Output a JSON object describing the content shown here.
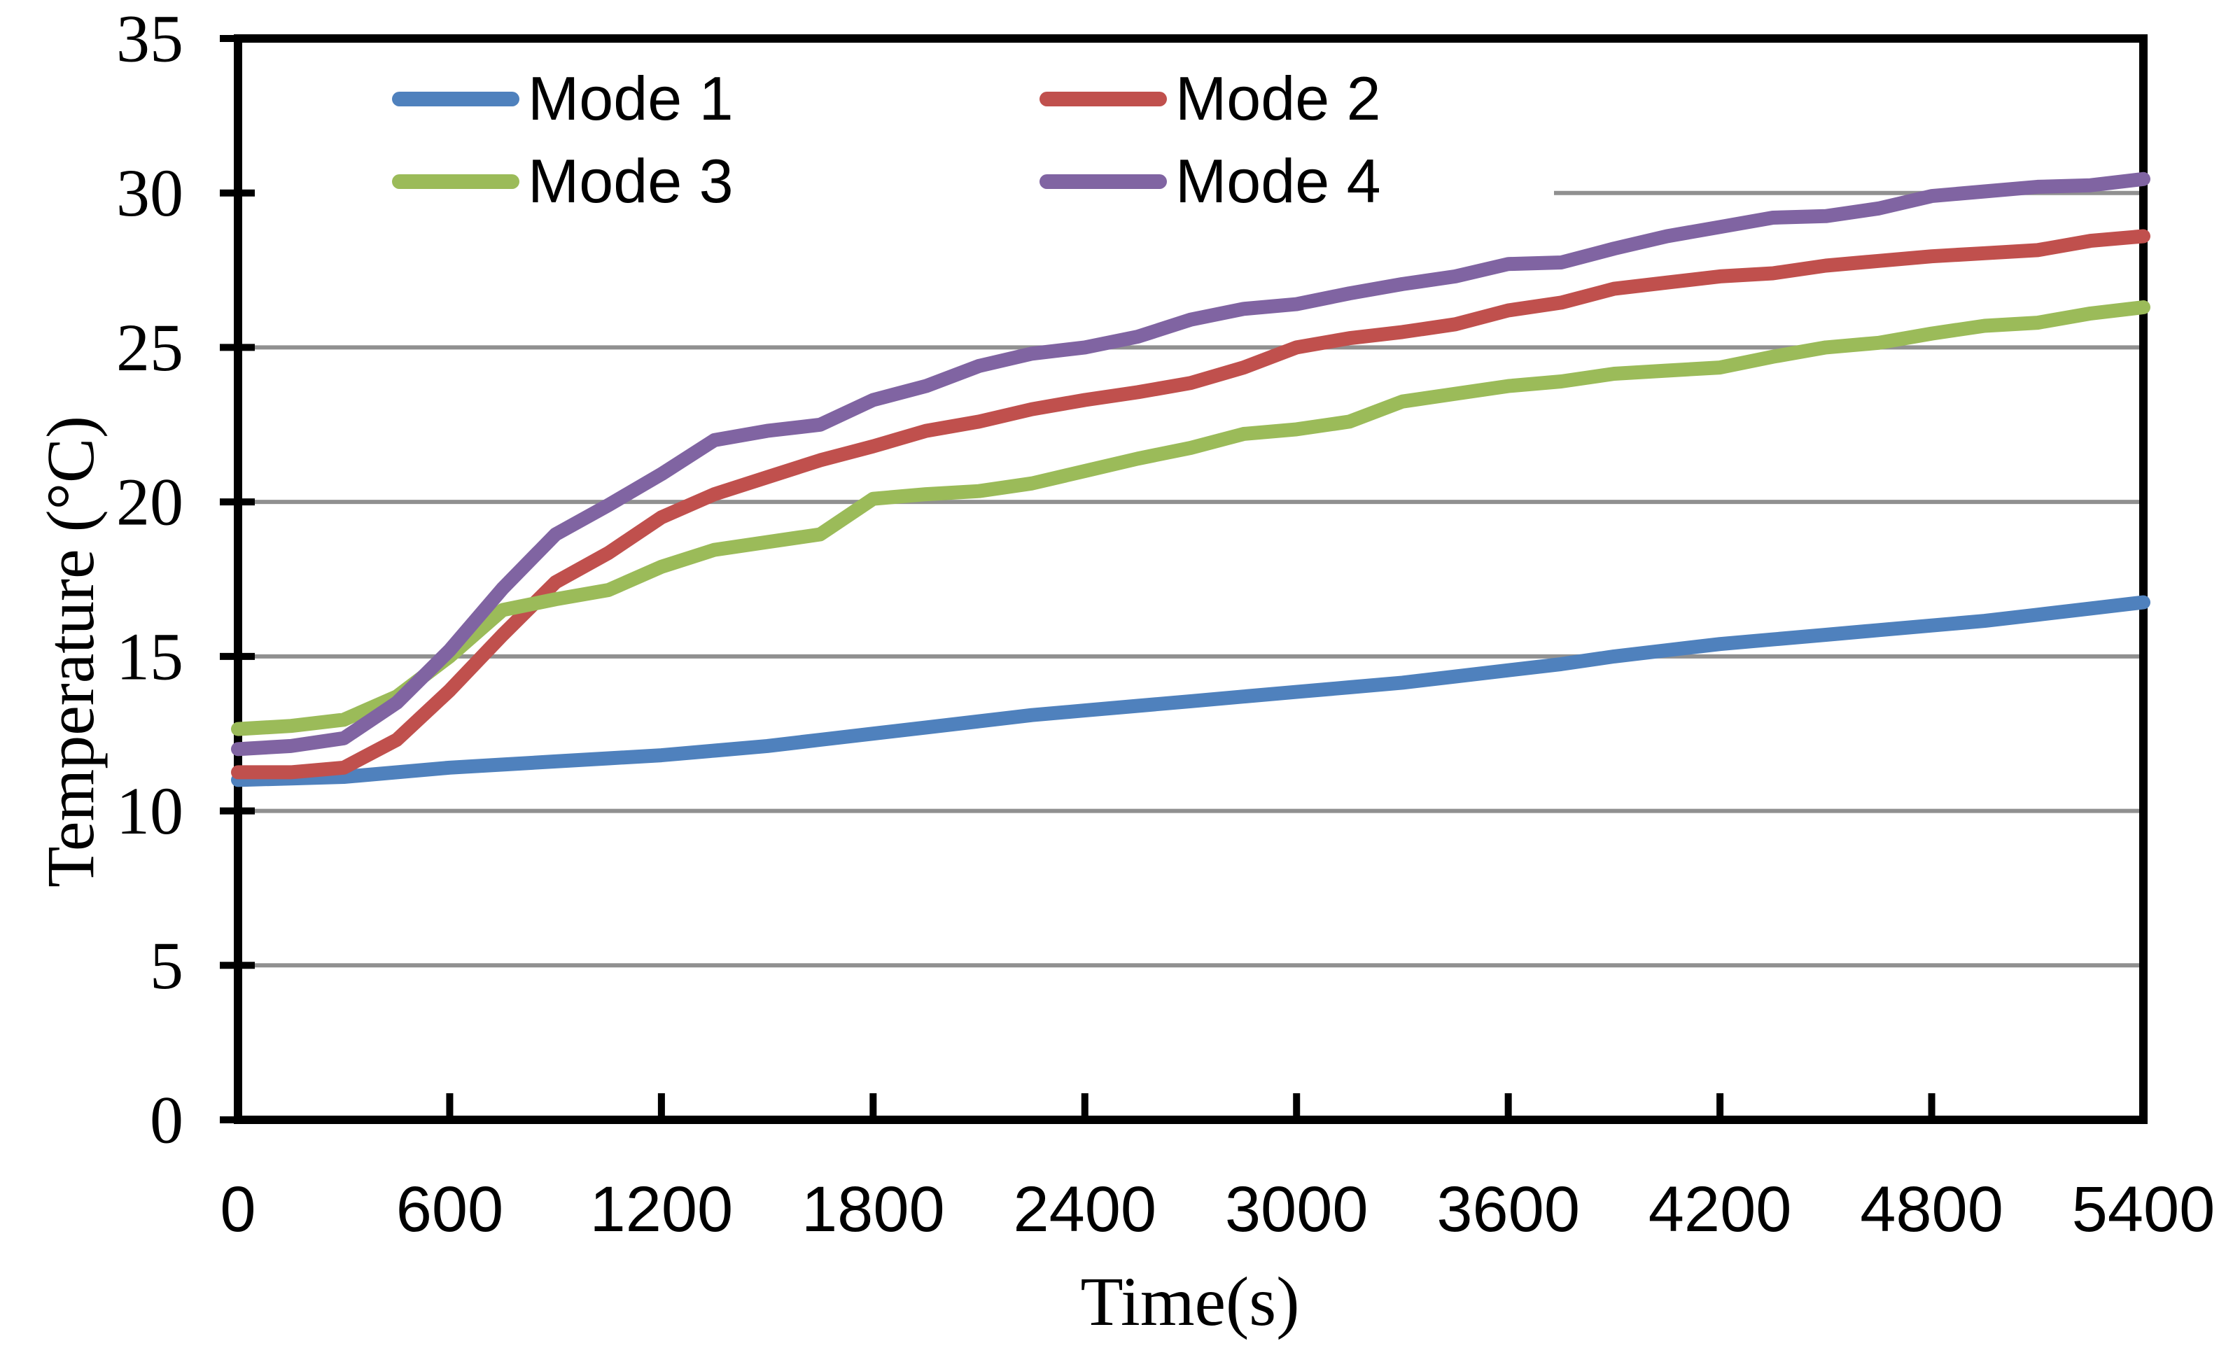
{
  "chart_data": {
    "type": "line",
    "title": "",
    "xlabel": "Time(s)",
    "ylabel": "Temperature (°C)",
    "xlim": [
      0,
      5400
    ],
    "ylim": [
      0,
      35
    ],
    "x_tick_step": 600,
    "y_tick_step": 5,
    "x_ticks": [
      0,
      600,
      1200,
      1800,
      2400,
      3000,
      3600,
      4200,
      4800,
      5400
    ],
    "y_ticks": [
      0,
      5,
      10,
      15,
      20,
      25,
      30,
      35
    ],
    "grid": "horizontal",
    "legend_position": "top-left-inside",
    "axis_color": "#000000",
    "gridline_color": "#909090",
    "background_color": "#ffffff",
    "x": [
      0,
      150,
      300,
      450,
      600,
      750,
      900,
      1050,
      1200,
      1350,
      1500,
      1650,
      1800,
      1950,
      2100,
      2250,
      2400,
      2550,
      2700,
      2850,
      3000,
      3150,
      3300,
      3450,
      3600,
      3750,
      3900,
      4050,
      4200,
      4350,
      4500,
      4650,
      4800,
      4950,
      5100,
      5250,
      5400
    ],
    "series": [
      {
        "name": "Mode 1",
        "color": "#4F81BD",
        "values": [
          11.0,
          11.05,
          11.1,
          11.25,
          11.4,
          11.5,
          11.6,
          11.7,
          11.8,
          11.95,
          12.1,
          12.3,
          12.5,
          12.7,
          12.9,
          13.1,
          13.25,
          13.4,
          13.55,
          13.7,
          13.85,
          14.0,
          14.15,
          14.35,
          14.55,
          14.75,
          15.0,
          15.2,
          15.4,
          15.55,
          15.7,
          15.85,
          16.0,
          16.15,
          16.35,
          16.55,
          16.75
        ]
      },
      {
        "name": "Mode 2",
        "color": "#C0504D",
        "values": [
          11.25,
          11.25,
          11.4,
          12.3,
          13.9,
          15.7,
          17.4,
          18.35,
          19.5,
          20.25,
          20.8,
          21.35,
          21.8,
          22.3,
          22.6,
          23.0,
          23.3,
          23.55,
          23.85,
          24.35,
          25.0,
          25.3,
          25.5,
          25.75,
          26.2,
          26.45,
          26.9,
          27.1,
          27.3,
          27.4,
          27.65,
          27.8,
          27.95,
          28.05,
          28.15,
          28.45,
          28.6
        ]
      },
      {
        "name": "Mode 3",
        "color": "#9BBB59",
        "values": [
          12.65,
          12.75,
          12.95,
          13.7,
          15.0,
          16.5,
          16.85,
          17.15,
          17.9,
          18.45,
          18.7,
          18.95,
          20.1,
          20.25,
          20.35,
          20.6,
          21.0,
          21.4,
          21.75,
          22.2,
          22.35,
          22.6,
          23.25,
          23.5,
          23.75,
          23.9,
          24.15,
          24.25,
          24.35,
          24.7,
          25.0,
          25.15,
          25.45,
          25.7,
          25.8,
          26.1,
          26.3
        ]
      },
      {
        "name": "Mode 4",
        "color": "#8064A2",
        "values": [
          12.0,
          12.1,
          12.35,
          13.5,
          15.2,
          17.2,
          18.95,
          19.9,
          20.9,
          22.0,
          22.3,
          22.5,
          23.3,
          23.75,
          24.4,
          24.8,
          25.0,
          25.35,
          25.9,
          26.25,
          26.4,
          26.75,
          27.05,
          27.3,
          27.7,
          27.75,
          28.2,
          28.6,
          28.9,
          29.2,
          29.25,
          29.5,
          29.9,
          30.05,
          30.2,
          30.25,
          30.45
        ]
      }
    ]
  }
}
